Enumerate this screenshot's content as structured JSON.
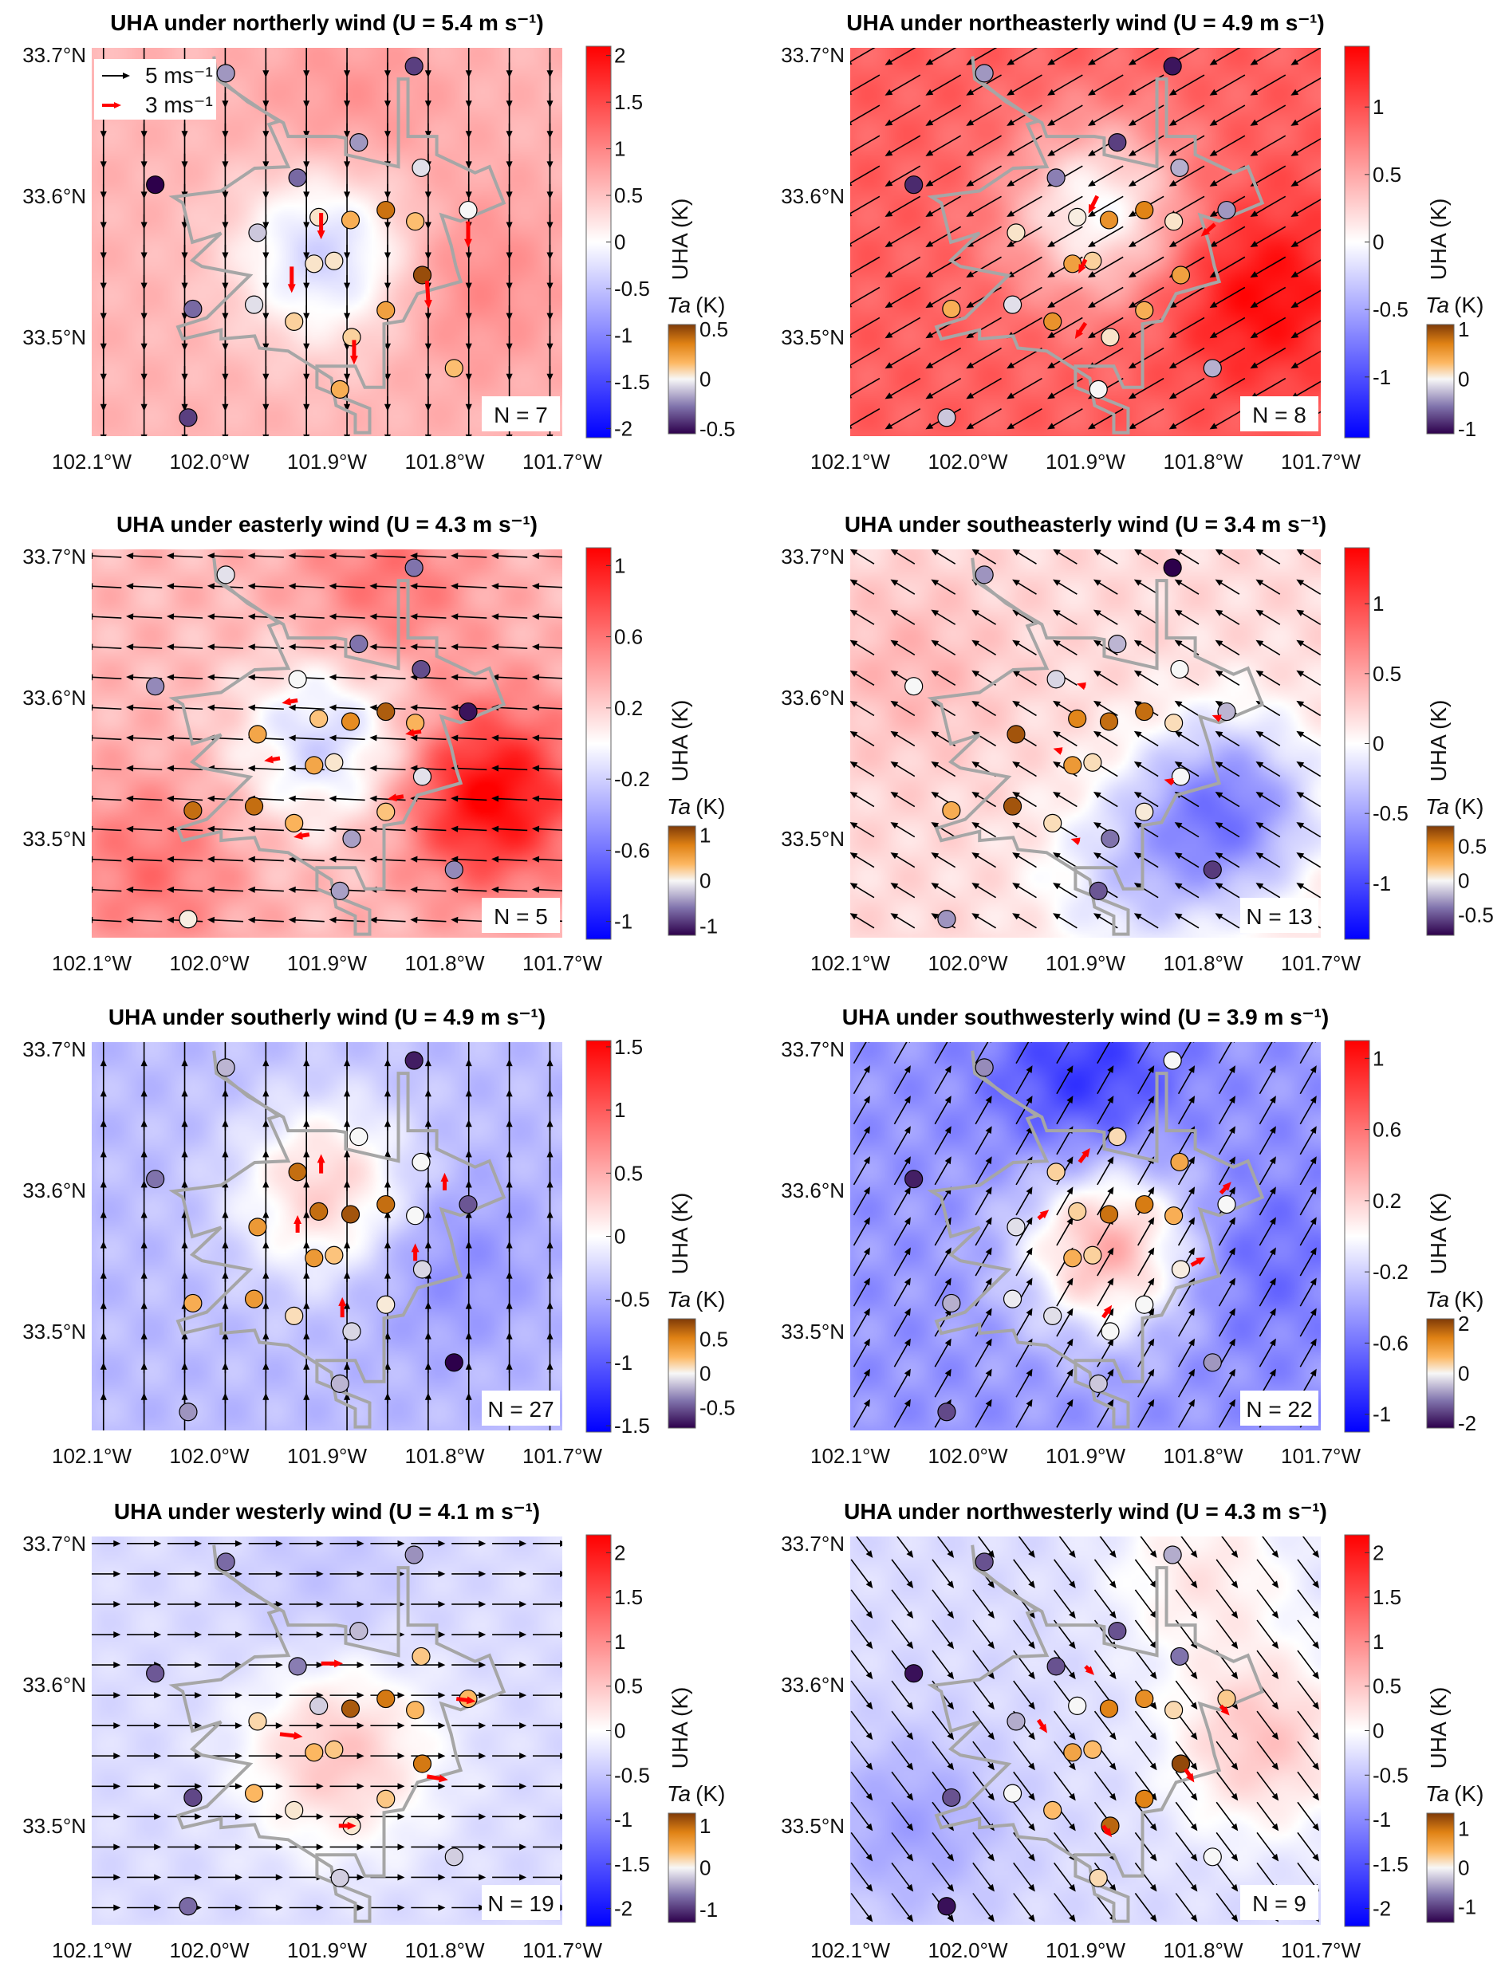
{
  "figure": {
    "lat_ticks": [
      "33.7°N",
      "33.6°N",
      "33.5°N"
    ],
    "lat_values": [
      33.7,
      33.6,
      33.5
    ],
    "lon_ticks": [
      "102.1°W",
      "102.0°W",
      "101.9°W",
      "101.8°W",
      "101.7°W"
    ],
    "lon_values": [
      -102.1,
      -102.0,
      -101.9,
      -101.8,
      -101.7
    ],
    "uha_label": "UHA (K)",
    "ta_symbol": "Ta",
    "ta_unit": "(K)",
    "legend": {
      "black_label": "5 ms⁻¹",
      "black_speed": 5,
      "red_label": "3 ms⁻¹",
      "red_speed": 3
    },
    "colors": {
      "uha_low": "#0000ff",
      "uha_mid": "#ffffff",
      "uha_high": "#ff0000",
      "ta_low": "#2d004b",
      "ta_high": "#7f3b08",
      "city_boundary": "#a6a6a6",
      "station_wind": "#ff0000",
      "grid_wind": "#000000"
    },
    "station_locations": [
      [
        -101.986,
        33.687
      ],
      [
        -101.826,
        33.692
      ],
      [
        -101.873,
        33.638
      ],
      [
        -101.82,
        33.62
      ],
      [
        -102.046,
        33.608
      ],
      [
        -101.925,
        33.613
      ],
      [
        -101.78,
        33.59
      ],
      [
        -101.907,
        33.585
      ],
      [
        -101.88,
        33.583
      ],
      [
        -101.85,
        33.59
      ],
      [
        -101.825,
        33.582
      ],
      [
        -101.959,
        33.574
      ],
      [
        -101.911,
        33.552
      ],
      [
        -101.894,
        33.554
      ],
      [
        -101.819,
        33.544
      ],
      [
        -102.014,
        33.52
      ],
      [
        -101.962,
        33.523
      ],
      [
        -101.85,
        33.519
      ],
      [
        -101.928,
        33.511
      ],
      [
        -101.879,
        33.5
      ],
      [
        -101.792,
        33.478
      ],
      [
        -101.889,
        33.463
      ],
      [
        -102.018,
        33.443
      ]
    ]
  },
  "panels": [
    {
      "title": "UHA under northerly wind (U = 5.4 m s⁻¹)",
      "n_label": "N = 7",
      "wind_dir": [
        0,
        -1
      ],
      "speed": 5.4,
      "show_legend": true,
      "uha_ticks": [
        "-2",
        "-1.5",
        "-1",
        "-0.5",
        "0",
        "0.5",
        "1",
        "1.5",
        "2"
      ],
      "uha_tick_values": [
        -2,
        -1.5,
        -1,
        -0.5,
        0,
        0.5,
        1,
        1.5,
        2
      ],
      "uha_range": 2.1,
      "ta_ticks": [
        "-0.5",
        "0",
        "0.5"
      ],
      "ta_tick_values": [
        -0.5,
        0,
        0.5
      ],
      "ta_range": 0.55,
      "field": {
        "base": 0.6,
        "hotspots": [
          [
            -101.9,
            33.56,
            -1.0
          ],
          [
            -101.78,
            33.54,
            0.4
          ],
          [
            -101.88,
            33.66,
            0.3
          ]
        ]
      },
      "ta": [
        -0.2,
        -0.4,
        -0.2,
        -0.05,
        -0.6,
        -0.3,
        0,
        0.05,
        0.2,
        0.4,
        0.15,
        -0.1,
        0.05,
        0.05,
        0.5,
        -0.3,
        -0.05,
        0.25,
        0.1,
        0.1,
        0.15,
        0.2,
        -0.4
      ],
      "station_winds": [
        [
          -101.905,
          33.588,
          0,
          -3
        ],
        [
          -101.93,
          33.55,
          0,
          -3
        ],
        [
          -101.78,
          33.582,
          0,
          -3
        ],
        [
          -101.815,
          33.54,
          0.2,
          -3.2
        ],
        [
          -101.877,
          33.498,
          0,
          -2.8
        ]
      ]
    },
    {
      "title": "UHA under northeasterly wind (U = 4.9 m s⁻¹)",
      "n_label": "N = 8",
      "wind_dir": [
        -0.86,
        -0.5
      ],
      "speed": 4.9,
      "show_legend": false,
      "uha_ticks": [
        "-1",
        "-0.5",
        "0",
        "0.5",
        "1"
      ],
      "uha_tick_values": [
        -1,
        -0.5,
        0,
        0.5,
        1
      ],
      "uha_range": 1.45,
      "ta_ticks": [
        "-1",
        "0",
        "1"
      ],
      "ta_tick_values": [
        -1,
        0,
        1
      ],
      "ta_range": 1.1,
      "field": {
        "base": 0.9,
        "hotspots": [
          [
            -101.89,
            33.59,
            -0.9
          ],
          [
            -101.75,
            33.53,
            0.5
          ]
        ]
      },
      "ta": [
        -0.4,
        -1.0,
        -0.8,
        -0.3,
        -0.9,
        -0.5,
        -0.4,
        0.05,
        0.6,
        0.7,
        0.1,
        0.1,
        0.5,
        0.2,
        0.5,
        0.4,
        -0.1,
        0.4,
        0.6,
        0.1,
        -0.3,
        0.0,
        -0.2
      ],
      "station_winds": [
        [
          -101.89,
          33.6,
          -1,
          -2
        ],
        [
          -101.9,
          33.555,
          -0.8,
          -1.6
        ],
        [
          -101.79,
          33.58,
          -1.6,
          -1.4
        ],
        [
          -101.9,
          33.51,
          -1.2,
          -1.8
        ]
      ]
    },
    {
      "title": "UHA under easterly wind (U = 4.3 m s⁻¹)",
      "n_label": "N = 5",
      "wind_dir": [
        -1,
        0.05
      ],
      "speed": 4.3,
      "show_legend": false,
      "uha_ticks": [
        "-1",
        "-0.6",
        "-0.2",
        "0.2",
        "0.6",
        "1"
      ],
      "uha_tick_values": [
        -1,
        -0.6,
        -0.2,
        0.2,
        0.6,
        1
      ],
      "uha_range": 1.1,
      "ta_ticks": [
        "-1",
        "0",
        "1"
      ],
      "ta_tick_values": [
        -1,
        0,
        1
      ],
      "ta_range": 1.2,
      "field": {
        "base": 0.3,
        "hotspots": [
          [
            -101.9,
            33.57,
            -0.5
          ],
          [
            -101.76,
            33.53,
            0.8
          ],
          [
            -101.85,
            33.68,
            0.3
          ],
          [
            -102.05,
            33.48,
            0.3
          ]
        ]
      },
      "ta": [
        -0.1,
        -0.6,
        -0.6,
        -0.8,
        -0.5,
        0,
        -1.1,
        0.3,
        0.7,
        1.0,
        0.4,
        0.5,
        0.5,
        0.1,
        -0.1,
        0.9,
        0.9,
        0.3,
        0.4,
        -0.4,
        -0.5,
        -0.4,
        0.05
      ],
      "station_winds": [
        [
          -101.925,
          33.598,
          -1.8,
          -0.3
        ],
        [
          -101.94,
          33.557,
          -1.8,
          -0.3
        ],
        [
          -101.82,
          33.576,
          -1.8,
          -0.3
        ],
        [
          -101.835,
          33.53,
          -1.8,
          -0.3
        ],
        [
          -101.915,
          33.503,
          -1.8,
          -0.3
        ]
      ]
    },
    {
      "title": "UHA under southeasterly wind (U = 3.4 m s⁻¹)",
      "n_label": "N = 13",
      "wind_dir": [
        -0.85,
        0.52
      ],
      "speed": 3.4,
      "show_legend": false,
      "uha_ticks": [
        "-1",
        "-0.5",
        "0",
        "0.5",
        "1"
      ],
      "uha_tick_values": [
        -1,
        -0.5,
        0,
        0.5,
        1
      ],
      "uha_range": 1.4,
      "ta_ticks": [
        "-0.5",
        "0",
        "0.5"
      ],
      "ta_tick_values": [
        -0.5,
        0,
        0.5
      ],
      "ta_range": 0.8,
      "field": {
        "base": 0.2,
        "hotspots": [
          [
            -101.78,
            33.52,
            -0.9
          ],
          [
            -101.86,
            33.47,
            -0.4
          ],
          [
            -102.05,
            33.62,
            0.2
          ]
        ]
      },
      "ta": [
        -0.3,
        -0.8,
        -0.2,
        0,
        0,
        -0.1,
        -0.2,
        0.5,
        0.6,
        0.6,
        0.1,
        0.7,
        0.4,
        0.1,
        0,
        0.3,
        0.7,
        0.05,
        0.1,
        -0.4,
        -0.6,
        -0.5,
        -0.3
      ],
      "station_winds": [
        [
          -101.9,
          33.608,
          -1,
          0.3
        ],
        [
          -101.92,
          33.562,
          -1,
          0.3
        ],
        [
          -101.785,
          33.585,
          -1,
          0.4
        ],
        [
          -101.825,
          33.54,
          -1.1,
          0.3
        ],
        [
          -101.905,
          33.498,
          -1,
          0.3
        ]
      ]
    },
    {
      "title": "UHA under southerly wind (U = 4.9 m s⁻¹)",
      "n_label": "N = 27",
      "wind_dir": [
        0,
        1
      ],
      "speed": 4.9,
      "show_legend": false,
      "uha_ticks": [
        "-1.5",
        "-1",
        "-0.5",
        "0",
        "0.5",
        "1",
        "1.5"
      ],
      "uha_tick_values": [
        -1.5,
        -1,
        -0.5,
        0,
        0.5,
        1,
        1.5
      ],
      "uha_range": 1.55,
      "ta_ticks": [
        "-0.5",
        "0",
        "0.5"
      ],
      "ta_tick_values": [
        -0.5,
        0,
        0.5
      ],
      "ta_range": 0.8,
      "field": {
        "base": -0.4,
        "hotspots": [
          [
            -101.9,
            33.6,
            0.7
          ],
          [
            -101.8,
            33.55,
            -0.3
          ]
        ]
      },
      "ta": [
        -0.2,
        -0.7,
        0,
        0,
        -0.4,
        0.6,
        -0.5,
        0.6,
        0.7,
        0.6,
        0,
        0.4,
        0.4,
        0.2,
        -0.1,
        0.3,
        0.4,
        0.05,
        0.1,
        -0.1,
        -0.8,
        -0.2,
        -0.3
      ],
      "station_winds": [
        [
          -101.905,
          33.612,
          0,
          2.2
        ],
        [
          -101.925,
          33.57,
          0,
          2
        ],
        [
          -101.8,
          33.6,
          0,
          2
        ],
        [
          -101.825,
          33.55,
          0,
          2
        ],
        [
          -101.887,
          33.51,
          0,
          2.3
        ]
      ]
    },
    {
      "title": "UHA under southwesterly wind (U = 3.9 m s⁻¹)",
      "n_label": "N = 22",
      "wind_dir": [
        0.5,
        0.87
      ],
      "speed": 3.9,
      "show_legend": false,
      "uha_ticks": [
        "-1",
        "-0.6",
        "-0.2",
        "0.2",
        "0.6",
        "1"
      ],
      "uha_tick_values": [
        -1,
        -0.6,
        -0.2,
        0.2,
        0.6,
        1
      ],
      "uha_range": 1.1,
      "ta_ticks": [
        "-2",
        "0",
        "2"
      ],
      "ta_tick_values": [
        -2,
        0,
        2
      ],
      "ta_range": 2.2,
      "field": {
        "base": -0.45,
        "hotspots": [
          [
            -101.88,
            33.56,
            0.8
          ],
          [
            -101.9,
            33.68,
            -0.4
          ],
          [
            -101.76,
            33.55,
            -0.2
          ]
        ]
      },
      "ta": [
        -0.9,
        0,
        0.3,
        0.9,
        -1.9,
        0.4,
        0,
        0.4,
        1.6,
        1.5,
        0.8,
        -0.2,
        0.8,
        0.4,
        0.1,
        -0.6,
        -0.1,
        0,
        -0.2,
        0,
        -0.8,
        -0.4,
        -1.5
      ],
      "station_winds": [
        [
          -101.905,
          33.62,
          1.2,
          1.6
        ],
        [
          -101.94,
          33.58,
          1.2,
          1
        ],
        [
          -101.785,
          33.598,
          1.2,
          1.3
        ],
        [
          -101.81,
          33.547,
          1.6,
          0.9
        ],
        [
          -101.885,
          33.51,
          1,
          1.4
        ]
      ]
    },
    {
      "title": "UHA under westerly wind (U = 4.1 m s⁻¹)",
      "n_label": "N = 19",
      "wind_dir": [
        1,
        0
      ],
      "speed": 4.1,
      "show_legend": false,
      "uha_ticks": [
        "-2",
        "-1.5",
        "-1",
        "-0.5",
        "0",
        "0.5",
        "1",
        "1.5",
        "2"
      ],
      "uha_tick_values": [
        -2,
        -1.5,
        -1,
        -0.5,
        0,
        0.5,
        1,
        1.5,
        2
      ],
      "uha_range": 2.2,
      "ta_ticks": [
        "-1",
        "0",
        "1"
      ],
      "ta_tick_values": [
        -1,
        0,
        1
      ],
      "ta_range": 1.3,
      "field": {
        "base": -0.3,
        "hotspots": [
          [
            -101.89,
            33.55,
            0.8
          ],
          [
            -101.9,
            33.67,
            -0.2
          ]
        ]
      },
      "ta": [
        -0.7,
        -0.5,
        -0.3,
        0.3,
        -0.8,
        -0.6,
        0.4,
        -0.2,
        1.1,
        0.9,
        0.4,
        0.2,
        0.4,
        0.3,
        0.9,
        -0.9,
        0.4,
        0.3,
        0.1,
        0.1,
        -0.2,
        -0.2,
        -0.7
      ],
      "station_winds": [
        [
          -101.905,
          33.615,
          2.5,
          0
        ],
        [
          -101.94,
          33.565,
          2.6,
          -0.3
        ],
        [
          -101.79,
          33.59,
          2.2,
          -0.3
        ],
        [
          -101.815,
          33.535,
          2.4,
          -0.4
        ],
        [
          -101.89,
          33.5,
          2,
          0
        ]
      ]
    },
    {
      "title": "UHA under northwesterly wind (U = 4.3 m s⁻¹)",
      "n_label": "N = 9",
      "wind_dir": [
        0.6,
        -0.8
      ],
      "speed": 4.3,
      "show_legend": false,
      "uha_ticks": [
        "-2",
        "-1.5",
        "-1",
        "-0.5",
        "0",
        "0.5",
        "1",
        "1.5",
        "2"
      ],
      "uha_tick_values": [
        -2,
        -1.5,
        -1,
        -0.5,
        0,
        0.5,
        1,
        1.5,
        2
      ],
      "uha_range": 2.2,
      "ta_ticks": [
        "-1",
        "0",
        "1"
      ],
      "ta_tick_values": [
        -1,
        0,
        1
      ],
      "ta_range": 1.4,
      "field": {
        "base": -0.3,
        "hotspots": [
          [
            -102.05,
            33.5,
            -0.5
          ],
          [
            -101.75,
            33.56,
            0.8
          ],
          [
            -101.8,
            33.68,
            0.5
          ]
        ]
      },
      "ta": [
        -0.9,
        -0.4,
        -0.9,
        -0.7,
        -1.3,
        -0.9,
        0.3,
        0,
        0.9,
        0.8,
        0.2,
        -0.4,
        0.6,
        0.4,
        1.3,
        -0.9,
        0,
        0.9,
        0.4,
        1.1,
        0,
        0.2,
        -1.3
      ],
      "station_winds": [
        [
          -101.9,
          33.613,
          1,
          -1
        ],
        [
          -101.94,
          33.575,
          1,
          -1.5
        ],
        [
          -101.785,
          33.585,
          1,
          -1.1
        ],
        [
          -101.815,
          33.54,
          1,
          -1.5
        ],
        [
          -101.885,
          33.5,
          1,
          -1.3
        ]
      ]
    }
  ]
}
